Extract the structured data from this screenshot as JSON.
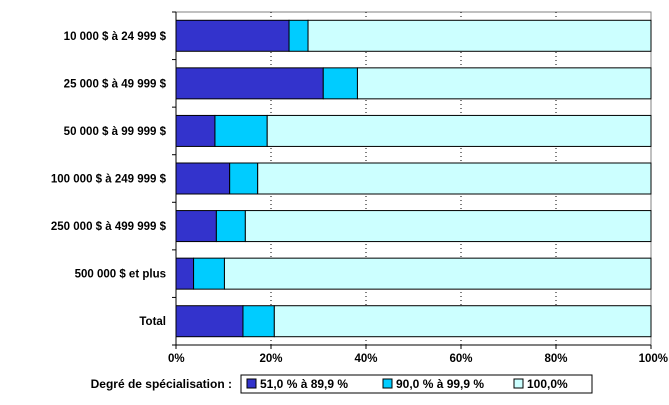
{
  "chart_data": {
    "type": "bar",
    "orientation": "horizontal",
    "stacked": true,
    "percent_stacked": true,
    "categories": [
      "10 000 $ à 24 999 $",
      "25 000 $ à 49 999 $",
      "50 000 $ à 99 999 $",
      "100 000 $ à 249 999 $",
      "250 000 $ à 499 999 $",
      "500 000 $ et plus",
      "Total"
    ],
    "series": [
      {
        "name": "51,0 % à 89,9 %",
        "color": "#3333cc",
        "values": [
          23.8,
          31.0,
          8.2,
          11.3,
          8.5,
          3.7,
          14.1
        ]
      },
      {
        "name": "90,0 % à 99,9 %",
        "color": "#00ccff",
        "values": [
          4.0,
          7.2,
          11.0,
          5.9,
          6.1,
          6.5,
          6.6
        ]
      },
      {
        "name": "100,0%",
        "color": "#ccffff",
        "values": [
          72.2,
          61.8,
          80.8,
          82.8,
          85.4,
          89.8,
          79.3
        ]
      }
    ],
    "x_ticks": [
      "0%",
      "20%",
      "40%",
      "60%",
      "80%",
      "100%"
    ],
    "xlim": [
      0,
      100
    ],
    "grid": "vertical-dotted",
    "legend_position": "bottom",
    "legend_title": "Degré de spécialisation :"
  }
}
